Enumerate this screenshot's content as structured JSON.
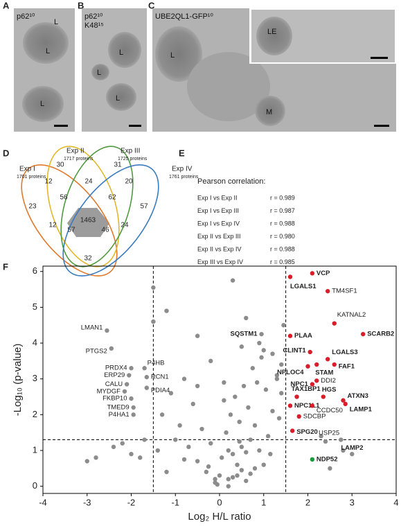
{
  "panels": [
    {
      "letter": "A",
      "labels": [
        "p62¹⁰",
        "L",
        "L",
        "L"
      ]
    },
    {
      "letter": "B",
      "labels": [
        "p62¹⁰",
        "K48¹⁵",
        "L",
        "L",
        "L"
      ]
    },
    {
      "letter": "C",
      "labels": [
        "UBE2QL1-GFP¹⁰",
        "L",
        "M",
        "LE"
      ]
    }
  ],
  "venn": {
    "letter": "D",
    "sets": [
      {
        "name": "Exp I",
        "size": "1701 proteins",
        "color": "#e07a2c"
      },
      {
        "name": "Exp II",
        "size": "1717 proteins",
        "color": "#d4a817"
      },
      {
        "name": "Exp III",
        "size": "1725 proteins",
        "color": "#4f9a40"
      },
      {
        "name": "Exp IV",
        "size": "1761 proteins",
        "color": "#3a7bbf"
      }
    ],
    "regions": [
      23,
      30,
      31,
      57,
      12,
      24,
      20,
      56,
      62,
      1463,
      12,
      57,
      46,
      24,
      32
    ]
  },
  "correlation": {
    "letter": "E",
    "title": "Pearson correlation:",
    "rows": [
      {
        "pair": "Exp I vs Exp II",
        "r": "r = 0.989"
      },
      {
        "pair": "Exp I vs Exp III",
        "r": "r = 0.987"
      },
      {
        "pair": "Exp I vs Exp IV",
        "r": "r = 0.988"
      },
      {
        "pair": "Exp II vs Exp III",
        "r": "r = 0.980"
      },
      {
        "pair": "Exp II vs Exp IV",
        "r": "r = 0.988"
      },
      {
        "pair": "Exp III vs Exp IV",
        "r": "r = 0.985"
      }
    ]
  },
  "chart_data": {
    "type": "scatter",
    "letter": "F",
    "x_label": "Log₂ H/L ratio",
    "y_label": "-Log₁₀ (p-value)",
    "xlim": [
      -4,
      4
    ],
    "ylim": [
      -0.2,
      6.15
    ],
    "xticks": [
      -4,
      -3,
      -2,
      -1,
      0,
      1,
      2,
      3,
      4
    ],
    "yticks": [
      0,
      1,
      2,
      3,
      4,
      5,
      6
    ],
    "thresholds_x": [
      -1.5,
      1.5
    ],
    "threshold_y": 1.3,
    "background": {
      "color": "#8c8c8c",
      "x": [
        -0.1,
        0.2,
        0.4,
        0.6,
        -0.3,
        0.8,
        1.0,
        0.05,
        0.3,
        -0.5,
        0.5,
        0.7,
        -0.2,
        0.15,
        0.9,
        1.1,
        -0.7,
        0.45,
        0.25,
        -0.4,
        0.65,
        0.35,
        1.2,
        -0.9,
        0.55,
        0.1,
        0.85,
        -0.6,
        1.3,
        0.75,
        -1.1,
        0.95,
        1.05,
        -0.05,
        0.4,
        0.6,
        -1.3,
        1.4,
        0.2,
        0.5,
        -0.8,
        0.3,
        0.7,
        1.15,
        -0.25,
        0.0,
        0.8,
        1.35,
        -1.0,
        0.45,
        -2.4,
        -2.8,
        -3.0,
        -2.2,
        -1.7,
        -1.8,
        -1.4,
        -1.2,
        -2.0,
        -0.2,
        0.1,
        0.5,
        0.9,
        1.2,
        1.45,
        -0.5,
        -1.5,
        -1.5,
        -1.2,
        -0.5,
        0.6,
        1.0,
        1.3,
        -0.8,
        0.3,
        1.4,
        2.5,
        2.8,
        3.0,
        2.3,
        0.2,
        -0.1
      ],
      "y": [
        0.1,
        0.2,
        0.3,
        0.15,
        0.4,
        0.5,
        0.6,
        0.8,
        0.9,
        0.7,
        1.1,
        1.3,
        1.2,
        1.5,
        1.0,
        1.4,
        1.1,
        1.8,
        2.0,
        1.6,
        2.2,
        2.5,
        2.1,
        1.7,
        2.8,
        2.4,
        2.9,
        2.3,
        3.0,
        3.3,
        2.6,
        3.6,
        2.7,
        0.05,
        0.6,
        0.95,
        2.0,
        2.6,
        1.0,
        0.45,
        0.75,
        0.25,
        0.35,
        0.9,
        0.55,
        0.3,
        1.7,
        1.9,
        1.3,
        1.25,
        1.1,
        0.8,
        0.7,
        1.2,
        1.3,
        0.8,
        1.0,
        0.4,
        0.9,
        3.5,
        2.9,
        3.9,
        4.0,
        3.7,
        4.5,
        2.8,
        5.55,
        4.6,
        4.9,
        4.2,
        4.7,
        3.8,
        3.1,
        3.0,
        5.75,
        3.4,
        0.5,
        1.0,
        0.9,
        1.4,
        0.0,
        0.2
      ]
    },
    "points": [
      {
        "label": "VCP",
        "x": 2.1,
        "y": 5.95,
        "dot_color": "#d81e2a",
        "label_color": "#f0a020"
      },
      {
        "label": "LGALS1",
        "x": 1.6,
        "y": 5.85,
        "dot_color": "#d81e2a",
        "label_color": "#1a9a3a"
      },
      {
        "label": "TM4SF1",
        "x": 2.45,
        "y": 5.45,
        "dot_color": "#d81e2a",
        "label_color": "#333333"
      },
      {
        "label": "KATNAL2",
        "x": 2.6,
        "y": 4.55,
        "dot_color": "#d81e2a",
        "label_color": "#333333"
      },
      {
        "label": "SCARB2",
        "x": 3.25,
        "y": 4.25,
        "dot_color": "#d81e2a",
        "label_color": "#2a2a80"
      },
      {
        "label": "SQSTM1",
        "x": 0.95,
        "y": 4.25,
        "dot_color": "#8c8c8c",
        "label_color": "#1a9a3a"
      },
      {
        "label": "PLAA",
        "x": 1.6,
        "y": 4.2,
        "dot_color": "#d81e2a",
        "label_color": "#f0a020"
      },
      {
        "label": "CLINT1",
        "x": 2.05,
        "y": 3.75,
        "dot_color": "#d81e2a",
        "label_color": "#2a2a80"
      },
      {
        "label": "LGALS3",
        "x": 2.45,
        "y": 3.55,
        "dot_color": "#d81e2a",
        "label_color": "#1a9a3a"
      },
      {
        "label": "FAF1",
        "x": 2.6,
        "y": 3.4,
        "dot_color": "#d81e2a",
        "label_color": "#f0a020"
      },
      {
        "label": "STAM",
        "x": 2.2,
        "y": 3.4,
        "dot_color": "#d81e2a",
        "label_color": "#2a2a80"
      },
      {
        "label": "NPLOC4",
        "x": 2.0,
        "y": 3.35,
        "dot_color": "#d81e2a",
        "label_color": "#f0a020"
      },
      {
        "label": "NPC1",
        "x": 2.1,
        "y": 2.85,
        "dot_color": "#d81e2a",
        "label_color": "#2a2a80"
      },
      {
        "label": "DDI2",
        "x": 2.2,
        "y": 2.95,
        "dot_color": "#d81e2a",
        "label_color": "#333333"
      },
      {
        "label": "TAX1BP1",
        "x": 1.75,
        "y": 2.5,
        "dot_color": "#d81e2a",
        "label_color": "#1a9a3a"
      },
      {
        "label": "HGS",
        "x": 2.35,
        "y": 2.5,
        "dot_color": "#d81e2a",
        "label_color": "#2a2a80"
      },
      {
        "label": "ATXN3",
        "x": 2.8,
        "y": 2.4,
        "dot_color": "#d81e2a",
        "label_color": "#f0a020"
      },
      {
        "label": "LAMP1",
        "x": 2.85,
        "y": 2.3,
        "dot_color": "#d81e2a",
        "label_color": "#2a2a80"
      },
      {
        "label": "NPC1L1",
        "x": 1.6,
        "y": 2.25,
        "dot_color": "#d81e2a",
        "label_color": "#2a2a80"
      },
      {
        "label": "CCDC50",
        "x": 2.1,
        "y": 2.25,
        "dot_color": "#d81e2a",
        "label_color": "#333333"
      },
      {
        "label": "SDCBP",
        "x": 1.8,
        "y": 1.95,
        "dot_color": "#d81e2a",
        "label_color": "#333333"
      },
      {
        "label": "SPG20",
        "x": 1.65,
        "y": 1.55,
        "dot_color": "#d81e2a",
        "label_color": "#2a2a80"
      },
      {
        "label": "LAMP2",
        "x": 2.75,
        "y": 1.3,
        "dot_color": "#8c8c8c",
        "label_color": "#2a2a80"
      },
      {
        "label": "USP25",
        "x": 2.4,
        "y": 1.25,
        "dot_color": "#8c8c8c",
        "label_color": "#333333"
      },
      {
        "label": "NDP52",
        "x": 2.1,
        "y": 0.75,
        "dot_color": "#1a9a3a",
        "label_color": "#1a9a3a"
      },
      {
        "label": "LMAN1",
        "x": -2.55,
        "y": 4.35,
        "dot_color": "#8c8c8c",
        "label_color": "#333333"
      },
      {
        "label": "PTGS2",
        "x": -2.45,
        "y": 3.85,
        "dot_color": "#8c8c8c",
        "label_color": "#333333"
      },
      {
        "label": "PRDX4",
        "x": -2.0,
        "y": 3.3,
        "dot_color": "#8c8c8c",
        "label_color": "#333333"
      },
      {
        "label": "P4HB",
        "x": -1.7,
        "y": 3.3,
        "dot_color": "#8c8c8c",
        "label_color": "#333333"
      },
      {
        "label": "ERP29",
        "x": -2.05,
        "y": 3.1,
        "dot_color": "#8c8c8c",
        "label_color": "#333333"
      },
      {
        "label": "RCN1",
        "x": -1.65,
        "y": 3.05,
        "dot_color": "#8c8c8c",
        "label_color": "#333333"
      },
      {
        "label": "CALU",
        "x": -2.1,
        "y": 2.85,
        "dot_color": "#8c8c8c",
        "label_color": "#333333"
      },
      {
        "label": "PDIA4",
        "x": -1.65,
        "y": 2.75,
        "dot_color": "#8c8c8c",
        "label_color": "#333333"
      },
      {
        "label": "MYDGF",
        "x": -2.15,
        "y": 2.65,
        "dot_color": "#8c8c8c",
        "label_color": "#333333"
      },
      {
        "label": "FKBP10",
        "x": -2.0,
        "y": 2.45,
        "dot_color": "#8c8c8c",
        "label_color": "#333333"
      },
      {
        "label": "TMED9",
        "x": -1.95,
        "y": 2.2,
        "dot_color": "#8c8c8c",
        "label_color": "#333333"
      },
      {
        "label": "P4HA1",
        "x": -1.95,
        "y": 2.0,
        "dot_color": "#8c8c8c",
        "label_color": "#333333"
      }
    ]
  }
}
